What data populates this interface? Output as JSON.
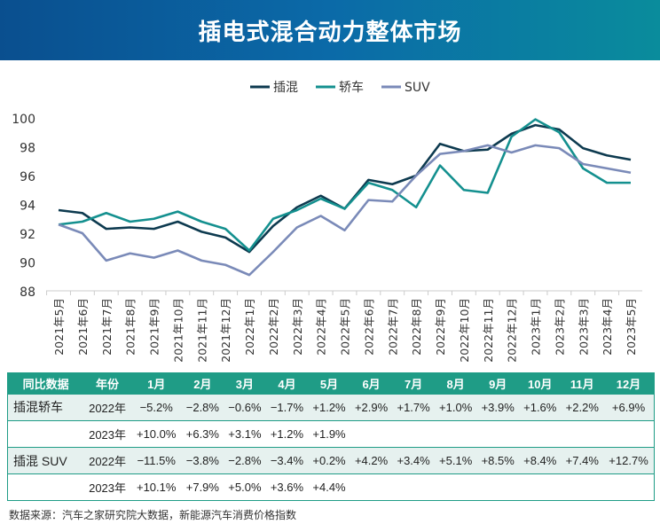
{
  "title": "插电式混合动力整体市场",
  "chart_data": {
    "type": "line",
    "title": "",
    "categories": [
      "2021年5月",
      "2021年6月",
      "2021年7月",
      "2021年8月",
      "2021年9月",
      "2021年10月",
      "2021年11月",
      "2021年12月",
      "2022年1月",
      "2022年2月",
      "2022年3月",
      "2022年4月",
      "2022年5月",
      "2022年6月",
      "2022年7月",
      "2022年8月",
      "2022年9月",
      "2022年10月",
      "2022年11月",
      "2022年12月",
      "2023年1月",
      "2023年2月",
      "2023年3月",
      "2023年4月",
      "2023年5月"
    ],
    "ylim": [
      88,
      100
    ],
    "yticks": [
      88,
      90,
      92,
      94,
      96,
      98,
      100
    ],
    "legend_position": "top",
    "grid": false,
    "series": [
      {
        "name": "插混",
        "color": "#0d3a4f",
        "values": [
          93.6,
          93.4,
          92.3,
          92.4,
          92.3,
          92.8,
          92.1,
          91.7,
          90.7,
          92.5,
          93.8,
          94.6,
          93.7,
          95.7,
          95.4,
          96.0,
          98.2,
          97.7,
          97.8,
          98.9,
          99.5,
          99.2,
          97.9,
          97.4,
          97.1
        ]
      },
      {
        "name": "轿车",
        "color": "#14908f",
        "values": [
          92.6,
          92.8,
          93.4,
          92.8,
          93.0,
          93.5,
          92.8,
          92.3,
          90.8,
          93.0,
          93.6,
          94.4,
          93.7,
          95.5,
          95.0,
          93.8,
          96.7,
          95.0,
          94.8,
          98.7,
          99.9,
          99.0,
          96.5,
          95.5,
          95.5
        ]
      },
      {
        "name": "SUV",
        "color": "#7a8ab8",
        "values": [
          92.6,
          92.0,
          90.1,
          90.6,
          90.3,
          90.8,
          90.1,
          89.8,
          89.1,
          90.7,
          92.4,
          93.2,
          92.2,
          94.3,
          94.2,
          96.0,
          97.5,
          97.7,
          98.1,
          97.6,
          98.1,
          97.9,
          96.8,
          96.5,
          96.2
        ]
      }
    ]
  },
  "table": {
    "headers": [
      "同比数据",
      "年份",
      "1月",
      "2月",
      "3月",
      "4月",
      "5月",
      "6月",
      "7月",
      "8月",
      "9月",
      "10月",
      "11月",
      "12月"
    ],
    "rows": [
      {
        "group": "插混轿车",
        "year": "2022年",
        "values": [
          "−5.2%",
          "−2.8%",
          "−0.6%",
          "−1.7%",
          "+1.2%",
          "+2.9%",
          "+1.7%",
          "+1.0%",
          "+3.9%",
          "+1.6%",
          "+2.2%",
          "+6.9%"
        ]
      },
      {
        "group": "",
        "year": "2023年",
        "values": [
          "+10.0%",
          "+6.3%",
          "+3.1%",
          "+1.2%",
          "+1.9%",
          "",
          "",
          "",
          "",
          "",
          "",
          ""
        ]
      },
      {
        "group": "插混 SUV",
        "year": "2022年",
        "values": [
          "−11.5%",
          "−3.8%",
          "−2.8%",
          "−3.4%",
          "+0.2%",
          "+4.2%",
          "+3.4%",
          "+5.1%",
          "+8.5%",
          "+8.4%",
          "+7.4%",
          "+12.7%"
        ]
      },
      {
        "group": "",
        "year": "2023年",
        "values": [
          "+10.1%",
          "+7.9%",
          "+5.0%",
          "+3.6%",
          "+4.4%",
          "",
          "",
          "",
          "",
          "",
          "",
          ""
        ]
      }
    ]
  },
  "source": "数据来源：汽车之家研究院大数据，新能源汽车消费价格指数"
}
